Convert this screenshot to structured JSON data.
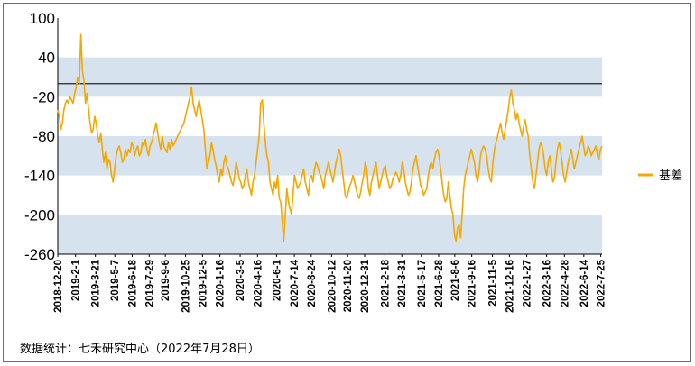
{
  "chart_data": {
    "type": "line",
    "series": [
      {
        "name": "基差",
        "color": "#f2a800",
        "start": "2018-12-20",
        "end": "2022-07-28",
        "y": [
          -40,
          -50,
          -70,
          -60,
          -40,
          -30,
          -25,
          -30,
          -20,
          -25,
          -30,
          -15,
          -5,
          10,
          0,
          75,
          20,
          5,
          -30,
          -15,
          -40,
          -60,
          -75,
          -70,
          -50,
          -60,
          -80,
          -90,
          -75,
          -100,
          -120,
          -105,
          -130,
          -115,
          -120,
          -140,
          -150,
          -130,
          -110,
          -100,
          -95,
          -105,
          -120,
          -115,
          -100,
          -110,
          -100,
          -105,
          -90,
          -95,
          -110,
          -100,
          -95,
          -110,
          -105,
          -90,
          -95,
          -85,
          -100,
          -110,
          -95,
          -90,
          -80,
          -70,
          -60,
          -75,
          -90,
          -100,
          -80,
          -95,
          -100,
          -105,
          -90,
          -100,
          -85,
          -95,
          -90,
          -85,
          -80,
          -75,
          -70,
          -65,
          -60,
          -50,
          -40,
          -30,
          -20,
          -5,
          -30,
          -40,
          -50,
          -35,
          -25,
          -40,
          -55,
          -70,
          -100,
          -130,
          -120,
          -110,
          -90,
          -100,
          -115,
          -125,
          -140,
          -150,
          -130,
          -140,
          -120,
          -110,
          -125,
          -130,
          -140,
          -150,
          -155,
          -140,
          -120,
          -130,
          -145,
          -150,
          -160,
          -155,
          -140,
          -130,
          -150,
          -160,
          -170,
          -150,
          -140,
          -120,
          -100,
          -80,
          -30,
          -25,
          -60,
          -90,
          -110,
          -120,
          -150,
          -160,
          -170,
          -150,
          -160,
          -140,
          -175,
          -180,
          -210,
          -240,
          -200,
          -160,
          -180,
          -190,
          -200,
          -170,
          -140,
          -150,
          -160,
          -155,
          -150,
          -140,
          -130,
          -150,
          -160,
          -170,
          -145,
          -140,
          -150,
          -130,
          -120,
          -125,
          -135,
          -140,
          -150,
          -160,
          -140,
          -130,
          -120,
          -130,
          -140,
          -150,
          -135,
          -120,
          -110,
          -100,
          -110,
          -130,
          -150,
          -170,
          -175,
          -165,
          -155,
          -150,
          -140,
          -150,
          -160,
          -170,
          -175,
          -165,
          -150,
          -140,
          -120,
          -130,
          -160,
          -170,
          -150,
          -140,
          -130,
          -120,
          -140,
          -160,
          -150,
          -140,
          -130,
          -125,
          -140,
          -150,
          -160,
          -155,
          -145,
          -140,
          -135,
          -140,
          -150,
          -140,
          -120,
          -130,
          -150,
          -160,
          -170,
          -165,
          -150,
          -130,
          -120,
          -110,
          -125,
          -140,
          -155,
          -160,
          -170,
          -165,
          -160,
          -140,
          -125,
          -120,
          -130,
          -115,
          -105,
          -100,
          -110,
          -130,
          -150,
          -170,
          -180,
          -175,
          -150,
          -170,
          -190,
          -200,
          -230,
          -240,
          -220,
          -215,
          -235,
          -200,
          -160,
          -140,
          -130,
          -120,
          -110,
          -100,
          -110,
          -120,
          -140,
          -150,
          -135,
          -110,
          -100,
          -95,
          -100,
          -110,
          -130,
          -145,
          -150,
          -120,
          -100,
          -90,
          -80,
          -70,
          -60,
          -75,
          -85,
          -70,
          -55,
          -40,
          -20,
          -10,
          -30,
          -40,
          -55,
          -45,
          -60,
          -70,
          -80,
          -65,
          -55,
          -70,
          -80,
          -110,
          -130,
          -150,
          -160,
          -140,
          -120,
          -100,
          -90,
          -95,
          -110,
          -130,
          -140,
          -120,
          -110,
          -130,
          -150,
          -145,
          -120,
          -100,
          -90,
          -100,
          -120,
          -140,
          -150,
          -135,
          -120,
          -110,
          -100,
          -115,
          -130,
          -120,
          -110,
          -100,
          -90,
          -80,
          -95,
          -110,
          -105,
          -95,
          -100,
          -110,
          -105,
          -100,
          -95,
          -110,
          -115,
          -100,
          -95
        ]
      }
    ],
    "ylim": [
      -260,
      100
    ],
    "yticks": [
      100,
      40,
      -20,
      -80,
      -140,
      -200,
      -260
    ],
    "xticks": [
      "2018-12-20",
      "2019-2-1",
      "2019-3-21",
      "2019-5-7",
      "2019-6-18",
      "2019-7-29",
      "2019-9-6",
      "2019-10-25",
      "2019-12-5",
      "2020-1-16",
      "2020-3-5",
      "2020-4-16",
      "2020-6-1",
      "2020-7-14",
      "2020-8-24",
      "2020-10-12",
      "2020-11-20",
      "2020-12-31",
      "2021-2-18",
      "2021-3-31",
      "2021-5-17",
      "2021-6-28",
      "2021-8-6",
      "2021-9-16",
      "2021-11-5",
      "2021-12-16",
      "2022-1-27",
      "2022-3-16",
      "2022-4-28",
      "2022-6-14",
      "2022-7-25"
    ],
    "reference_line": 0,
    "band_color": "#d6e2ee",
    "legend_position": "right"
  },
  "footer": {
    "source": "数据统计：七禾研究中心（2022年7月28日）"
  }
}
